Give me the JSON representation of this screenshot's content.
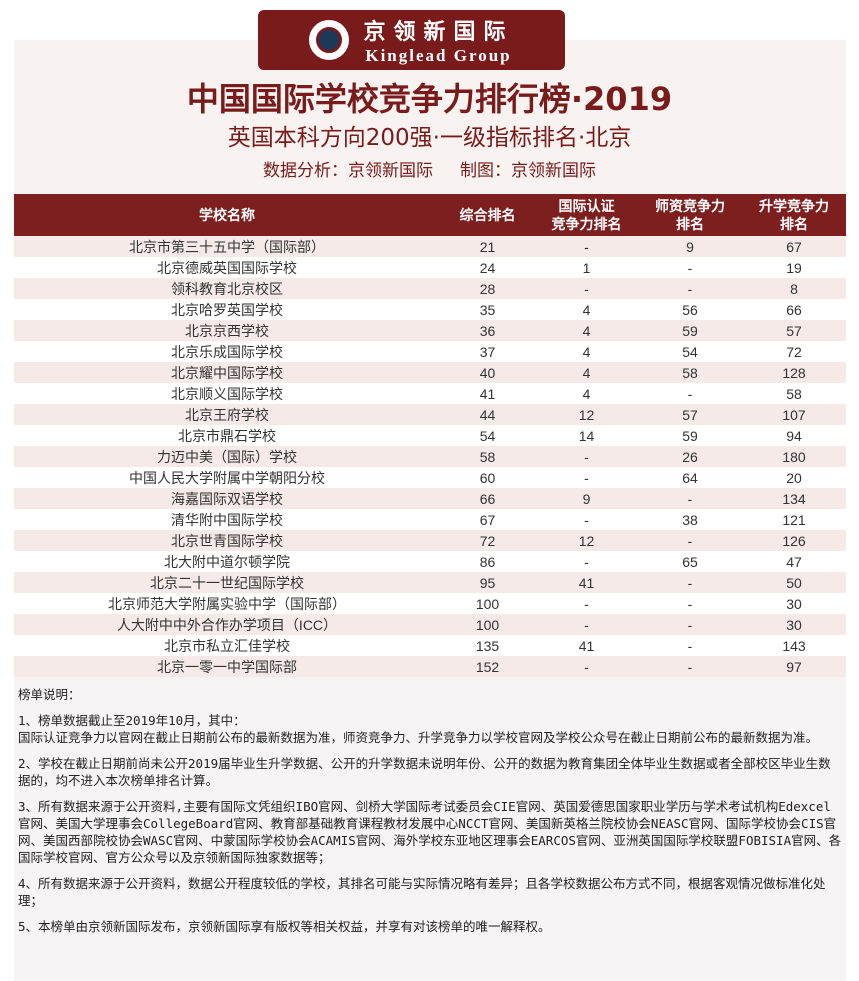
{
  "logo": {
    "cn": "京领新国际",
    "en": "Kinglead Group"
  },
  "title": "中国国际学校竞争力排行榜·2019",
  "subtitle": "英国本科方向200强·一级指标排名·北京",
  "credits": "数据分析：京领新国际     制图：京领新国际",
  "table": {
    "headers": [
      "学校名称",
      "综合排名",
      "国际认证\n竞争力排名",
      "师资竞争力\n排名",
      "升学竞争力\n排名"
    ],
    "rows": [
      [
        "北京市第三十五中学（国际部）",
        "21",
        "-",
        "9",
        "67"
      ],
      [
        "北京德威英国国际学校",
        "24",
        "1",
        "-",
        "19"
      ],
      [
        "领科教育北京校区",
        "28",
        "-",
        "-",
        "8"
      ],
      [
        "北京哈罗英国学校",
        "35",
        "4",
        "56",
        "66"
      ],
      [
        "北京京西学校",
        "36",
        "4",
        "59",
        "57"
      ],
      [
        "北京乐成国际学校",
        "37",
        "4",
        "54",
        "72"
      ],
      [
        "北京耀中国际学校",
        "40",
        "4",
        "58",
        "128"
      ],
      [
        "北京顺义国际学校",
        "41",
        "4",
        "-",
        "58"
      ],
      [
        "北京王府学校",
        "44",
        "12",
        "57",
        "107"
      ],
      [
        "北京市鼎石学校",
        "54",
        "14",
        "59",
        "94"
      ],
      [
        "力迈中美（国际）学校",
        "58",
        "-",
        "26",
        "180"
      ],
      [
        "中国人民大学附属中学朝阳分校",
        "60",
        "-",
        "64",
        "20"
      ],
      [
        "海嘉国际双语学校",
        "66",
        "9",
        "-",
        "134"
      ],
      [
        "清华附中国际学校",
        "67",
        "-",
        "38",
        "121"
      ],
      [
        "北京世青国际学校",
        "72",
        "12",
        "-",
        "126"
      ],
      [
        "北大附中道尔顿学院",
        "86",
        "-",
        "65",
        "47"
      ],
      [
        "北京二十一世纪国际学校",
        "95",
        "41",
        "-",
        "50"
      ],
      [
        "北京师范大学附属实验中学（国际部）",
        "100",
        "-",
        "-",
        "30"
      ],
      [
        "人大附中中外合作办学项目（ICC）",
        "100",
        "-",
        "-",
        "30"
      ],
      [
        "北京市私立汇佳学校",
        "135",
        "41",
        "-",
        "143"
      ],
      [
        "北京一零一中学国际部",
        "152",
        "-",
        "-",
        "97"
      ]
    ]
  },
  "notes": {
    "heading": "榜单说明：",
    "items": [
      "1、榜单数据截止至2019年10月，其中：\n国际认证竞争力以官网在截止日期前公布的最新数据为准，师资竞争力、升学竞争力以学校官网及学校公众号在截止日期前公布的最新数据为准。",
      "2、学校在截止日期前尚未公开2019届毕业生升学数据、公开的升学数据未说明年份、公开的数据为教育集团全体毕业生数据或者全部校区毕业生数据的，均不进入本次榜单排名计算。",
      "3、所有数据来源于公开资料,主要有国际文凭组织IBO官网、剑桥大学国际考试委员会CIE官网、英国爱德思国家职业学历与学术考试机构Edexcel官网、美国大学理事会CollegeBoard官网、教育部基础教育课程教材发展中心NCCT官网、美国新英格兰院校协会NEASC官网、国际学校协会CIS官网、美国西部院校协会WASC官网、中蒙国际学校协会ACAMIS官网、海外学校东亚地区理事会EARCOS官网、亚洲英国国际学校联盟FOBISIA官网、各国际学校官网、官方公众号以及京领新国际独家数据等；",
      "4、所有数据来源于公开资料，数据公开程度较低的学校，其排名可能与实际情况略有差异；且各学校数据公布方式不同，根据客观情况做标准化处理；",
      "5、本榜单由京领新国际发布，京领新国际享有版权等相关权益，并享有对该榜单的唯一解释权。"
    ]
  },
  "colors": {
    "brand": "#7a1b1b",
    "row_alt": "#f5eae8"
  }
}
